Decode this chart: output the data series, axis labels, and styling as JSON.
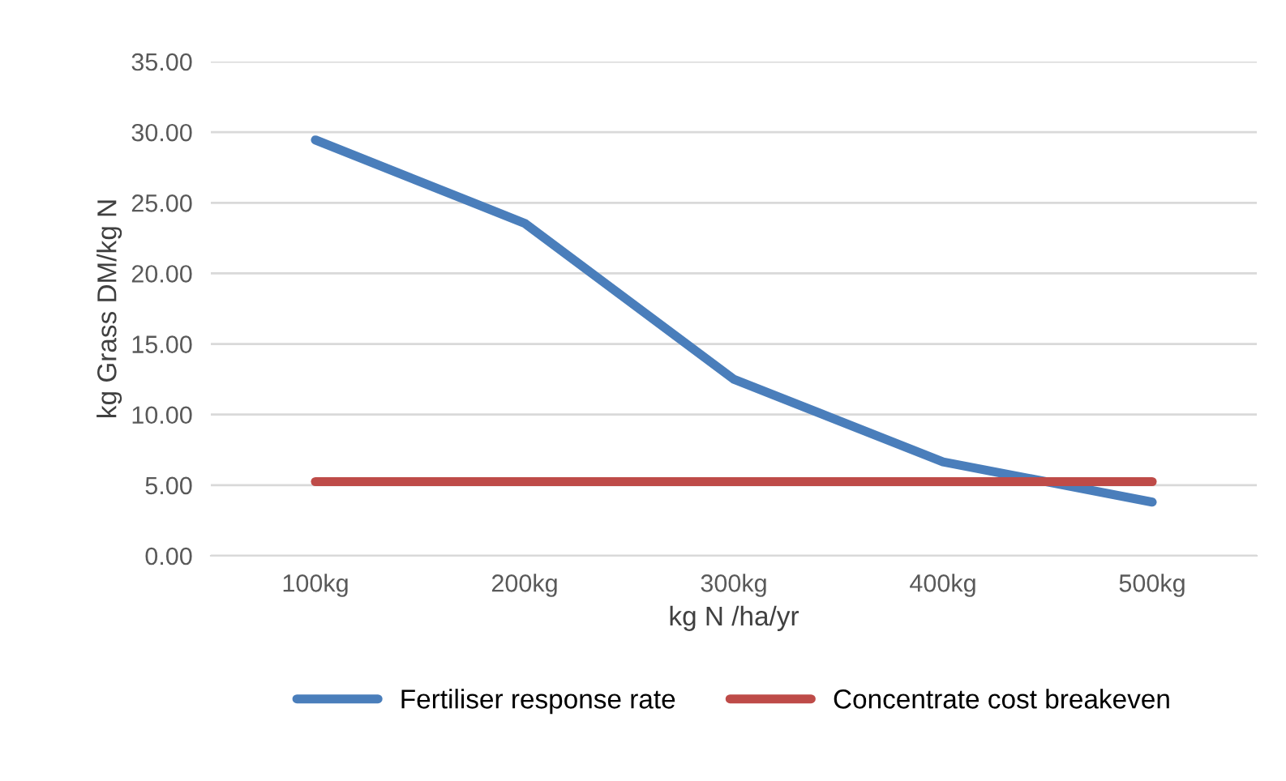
{
  "chart_data": {
    "type": "line",
    "xlabel": "kg N /ha/yr",
    "ylabel": "kg Grass DM/kg N",
    "categories": [
      "100kg",
      "200kg",
      "300kg",
      "400kg",
      "500kg"
    ],
    "series": [
      {
        "name": "Fertiliser response rate",
        "color": "#4a7ebb",
        "values": [
          29.45,
          23.55,
          12.5,
          6.65,
          3.8
        ]
      },
      {
        "name": "Concentrate cost breakeven",
        "color": "#be4b48",
        "values": [
          5.25,
          5.25,
          5.25,
          5.25,
          5.25
        ]
      }
    ],
    "ylim": [
      0,
      35
    ],
    "yticks": [
      {
        "value": 0,
        "label": "0.00"
      },
      {
        "value": 5,
        "label": "5.00"
      },
      {
        "value": 10,
        "label": "10.00"
      },
      {
        "value": 15,
        "label": "15.00"
      },
      {
        "value": 20,
        "label": "20.00"
      },
      {
        "value": 25,
        "label": "25.00"
      },
      {
        "value": 30,
        "label": "30.00"
      },
      {
        "value": 35,
        "label": "35.00"
      }
    ],
    "grid": "y",
    "legend": "bottom",
    "marker": "none",
    "line_style": "solid"
  }
}
